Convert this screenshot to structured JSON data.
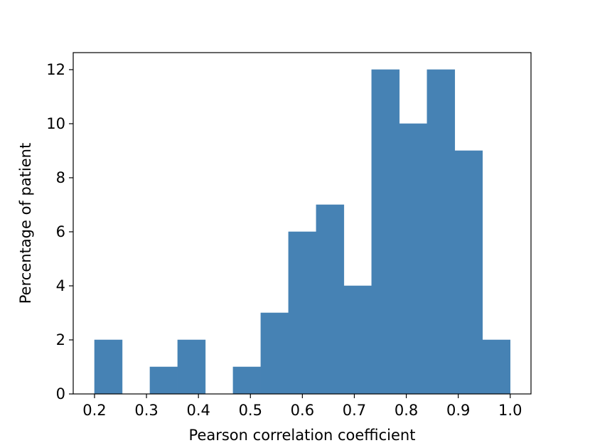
{
  "chart_data": {
    "type": "histogram",
    "x_label": "Pearson correlation coefficient",
    "y_label": "Percentage of patient",
    "bins": [
      0.2,
      0.25333,
      0.30667,
      0.36,
      0.41333,
      0.46667,
      0.52,
      0.57333,
      0.62667,
      0.68,
      0.73333,
      0.78667,
      0.84,
      0.89333,
      0.94667,
      1.0
    ],
    "values": [
      2,
      0,
      1,
      2,
      0,
      1,
      3,
      6,
      7,
      4,
      12,
      10,
      12,
      9,
      2
    ],
    "color": "#4682b4",
    "xlim": [
      0.159,
      1.04
    ],
    "xticks": [
      0.2,
      0.3,
      0.4,
      0.5,
      0.6,
      0.7,
      0.8,
      0.9,
      {
        "value": 1,
        "label": "1.0"
      }
    ],
    "ylim": [
      0,
      12.63
    ],
    "yticks": [
      0,
      2,
      4,
      6,
      8,
      10,
      12
    ]
  }
}
